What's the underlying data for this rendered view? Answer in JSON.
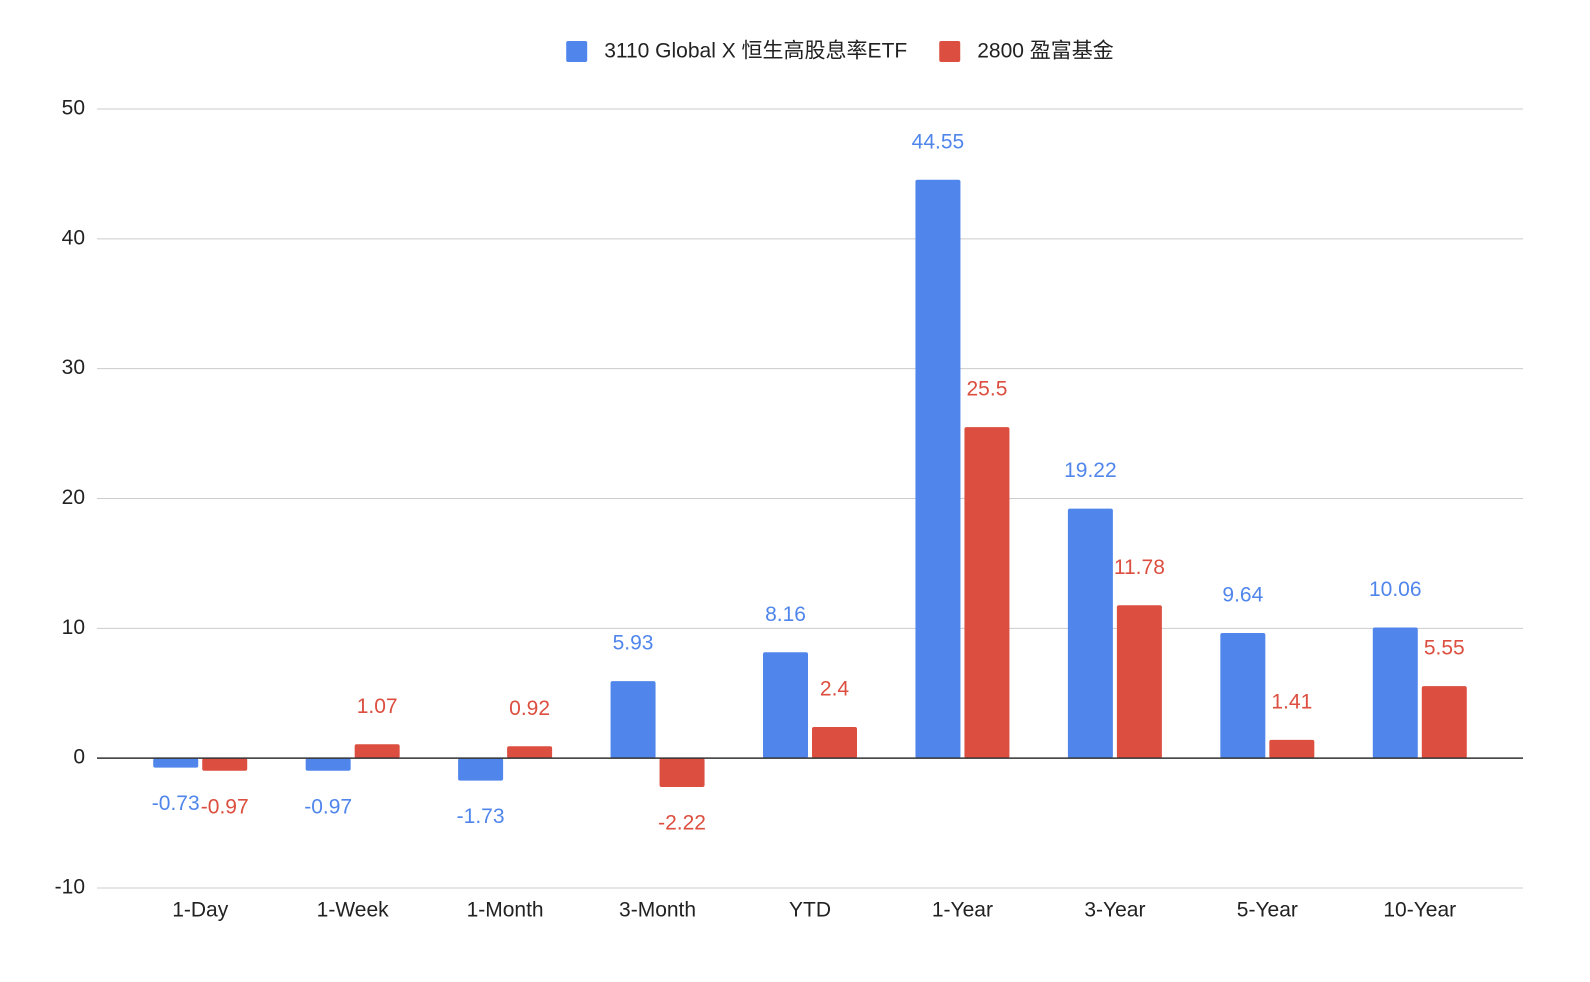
{
  "chart_data": {
    "type": "bar",
    "categories": [
      "1-Day",
      "1-Week",
      "1-Month",
      "3-Month",
      "YTD",
      "1-Year",
      "3-Year",
      "5-Year",
      "10-Year"
    ],
    "series": [
      {
        "name": "3110 Global X 恒生高股息率ETF",
        "color": "#5086ec",
        "values": [
          -0.73,
          -0.97,
          -1.73,
          5.93,
          8.16,
          44.55,
          19.22,
          9.64,
          10.06
        ]
      },
      {
        "name": "2800 盈富基金",
        "color": "#dc4e3f",
        "values": [
          -0.97,
          1.07,
          0.92,
          -2.22,
          2.4,
          25.5,
          11.78,
          1.41,
          5.55
        ]
      }
    ],
    "ylim": [
      -10,
      50
    ],
    "yticks": [
      -10,
      0,
      10,
      20,
      30,
      40,
      50
    ],
    "grid": true,
    "legend": "top"
  }
}
